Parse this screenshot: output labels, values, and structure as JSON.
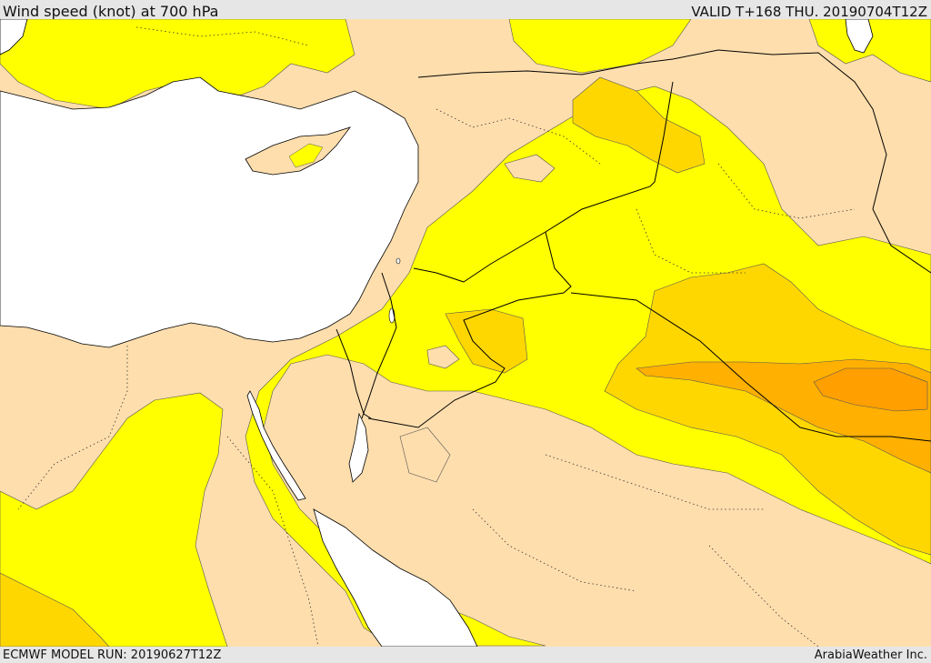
{
  "header": {
    "title": "Wind speed (knot) at 700 hPa",
    "valid": "VALID T+168 THU. 20190704T12Z"
  },
  "footer": {
    "model_run": "ECMWF MODEL RUN: 20190627T12Z",
    "credit": "ArabiaWeather Inc."
  },
  "map": {
    "field": "wind speed",
    "level": "700 hPa",
    "colors": {
      "sea": "#ffffff",
      "band_low": "#ffdead",
      "band_mid": "#ffff00",
      "band_high": "#ffd700",
      "band_higher": "#ffb000",
      "band_max": "#ff9f00",
      "border": "#000000"
    }
  }
}
